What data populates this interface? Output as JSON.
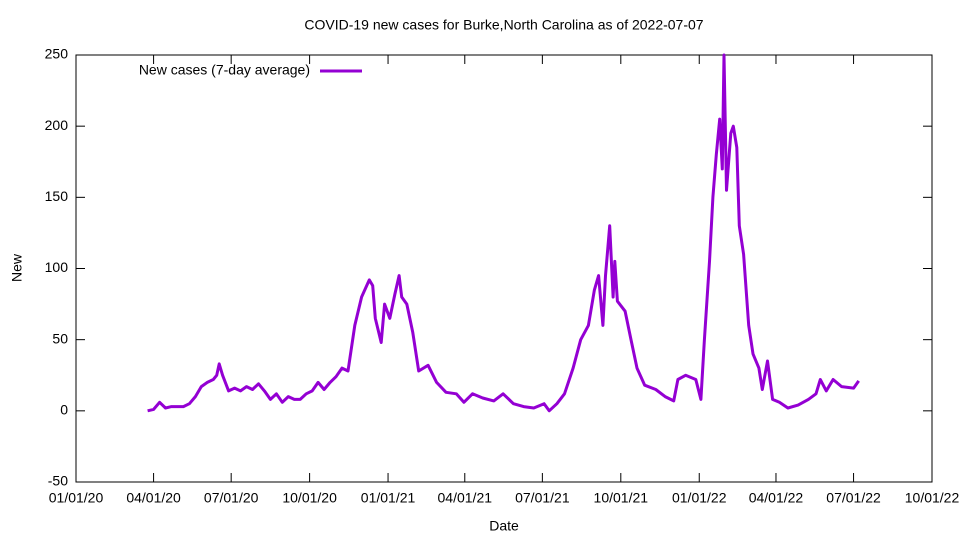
{
  "chart_data": {
    "type": "line",
    "title": "COVID-19 new cases for Burke,North Carolina as of 2022-07-07",
    "x_label": "Date",
    "y_label": "New",
    "x": [
      "2020-03-25",
      "2020-04-01",
      "2020-04-08",
      "2020-04-15",
      "2020-04-22",
      "2020-04-29",
      "2020-05-06",
      "2020-05-13",
      "2020-05-20",
      "2020-05-27",
      "2020-06-03",
      "2020-06-10",
      "2020-06-14",
      "2020-06-17",
      "2020-06-21",
      "2020-06-28",
      "2020-07-05",
      "2020-07-12",
      "2020-07-19",
      "2020-07-26",
      "2020-08-02",
      "2020-08-09",
      "2020-08-16",
      "2020-08-23",
      "2020-08-30",
      "2020-09-06",
      "2020-09-13",
      "2020-09-20",
      "2020-09-27",
      "2020-10-04",
      "2020-10-11",
      "2020-10-18",
      "2020-10-25",
      "2020-11-01",
      "2020-11-08",
      "2020-11-15",
      "2020-11-23",
      "2020-12-01",
      "2020-12-10",
      "2020-12-14",
      "2020-12-17",
      "2020-12-24",
      "2020-12-28",
      "2021-01-03",
      "2021-01-09",
      "2021-01-14",
      "2021-01-17",
      "2021-01-23",
      "2021-01-30",
      "2021-02-06",
      "2021-02-17",
      "2021-02-27",
      "2021-03-10",
      "2021-03-22",
      "2021-03-31",
      "2021-04-10",
      "2021-04-22",
      "2021-05-05",
      "2021-05-16",
      "2021-05-28",
      "2021-06-09",
      "2021-06-21",
      "2021-07-03",
      "2021-07-09",
      "2021-07-18",
      "2021-07-27",
      "2021-08-06",
      "2021-08-15",
      "2021-08-24",
      "2021-08-31",
      "2021-09-05",
      "2021-09-10",
      "2021-09-13",
      "2021-09-18",
      "2021-09-22",
      "2021-09-24",
      "2021-09-27",
      "2021-10-06",
      "2021-10-13",
      "2021-10-20",
      "2021-10-29",
      "2021-11-11",
      "2021-11-22",
      "2021-12-02",
      "2021-12-07",
      "2021-12-16",
      "2021-12-28",
      "2022-01-03",
      "2022-01-07",
      "2022-01-13",
      "2022-01-17",
      "2022-01-21",
      "2022-01-25",
      "2022-01-28",
      "2022-01-30",
      "2022-02-02",
      "2022-02-07",
      "2022-02-10",
      "2022-02-14",
      "2022-02-17",
      "2022-02-22",
      "2022-02-28",
      "2022-03-05",
      "2022-03-12",
      "2022-03-16",
      "2022-03-22",
      "2022-03-28",
      "2022-04-05",
      "2022-04-15",
      "2022-04-27",
      "2022-05-09",
      "2022-05-18",
      "2022-05-23",
      "2022-05-30",
      "2022-06-07",
      "2022-06-17",
      "2022-07-01",
      "2022-07-07"
    ],
    "series": [
      {
        "name": "New cases (7-day average)",
        "color": "#9400d3",
        "values": [
          0,
          1,
          6,
          2,
          3,
          3,
          3,
          5,
          10,
          17,
          20,
          22,
          25,
          33,
          25,
          14,
          16,
          14,
          17,
          15,
          19,
          14,
          8,
          12,
          6,
          10,
          8,
          8,
          12,
          14,
          20,
          15,
          20,
          24,
          30,
          28,
          60,
          80,
          92,
          88,
          65,
          48,
          75,
          65,
          82,
          95,
          80,
          75,
          55,
          28,
          32,
          20,
          13,
          12,
          6,
          12,
          9,
          7,
          12,
          5,
          3,
          2,
          5,
          0,
          5,
          12,
          30,
          50,
          60,
          85,
          95,
          60,
          95,
          130,
          80,
          105,
          77,
          70,
          50,
          30,
          18,
          15,
          10,
          7,
          22,
          25,
          22,
          8,
          50,
          105,
          150,
          180,
          205,
          170,
          250,
          155,
          195,
          200,
          185,
          130,
          110,
          60,
          40,
          30,
          15,
          35,
          8,
          6,
          2,
          4,
          8,
          12,
          22,
          14,
          22,
          17,
          16,
          21
        ]
      }
    ],
    "xlim": [
      "2020-01-01",
      "2022-10-01"
    ],
    "xticks": [
      {
        "value": "2020-01-01",
        "label": "01/01/20"
      },
      {
        "value": "2020-04-01",
        "label": "04/01/20"
      },
      {
        "value": "2020-07-01",
        "label": "07/01/20"
      },
      {
        "value": "2020-10-01",
        "label": "10/01/20"
      },
      {
        "value": "2021-01-01",
        "label": "01/01/21"
      },
      {
        "value": "2021-04-01",
        "label": "04/01/21"
      },
      {
        "value": "2021-07-01",
        "label": "07/01/21"
      },
      {
        "value": "2021-10-01",
        "label": "10/01/21"
      },
      {
        "value": "2022-01-01",
        "label": "01/01/22"
      },
      {
        "value": "2022-04-01",
        "label": "04/01/22"
      },
      {
        "value": "2022-07-01",
        "label": "07/01/22"
      },
      {
        "value": "2022-10-01",
        "label": "10/01/22"
      }
    ],
    "ylim": [
      -50,
      250
    ],
    "yticks": [
      -50,
      0,
      50,
      100,
      150,
      200,
      250
    ],
    "grid": false,
    "legend": "top-left"
  }
}
